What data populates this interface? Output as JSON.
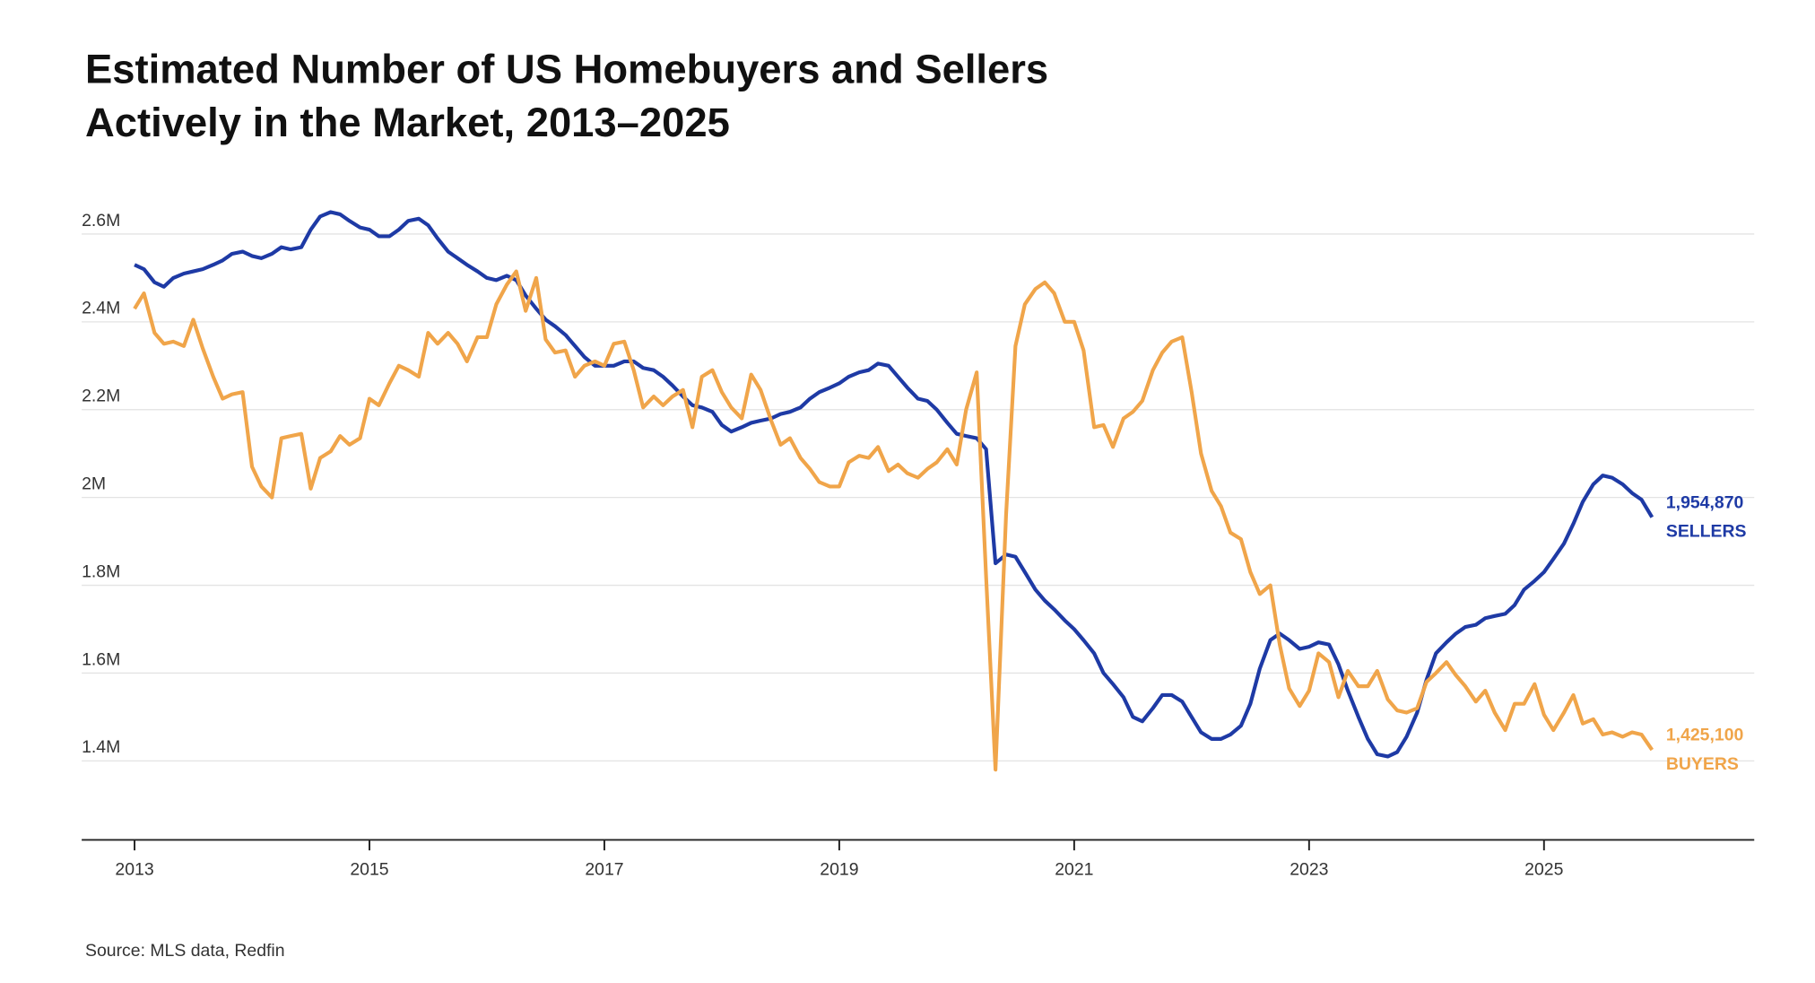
{
  "chart_data": {
    "type": "line",
    "title": [
      "Estimated Number of US Homebuyers and Sellers",
      "Actively in the Market, 2013–2025"
    ],
    "source": "Source: MLS data, Redfin",
    "x": [
      2013,
      2013.08,
      2013.17,
      2013.25,
      2013.33,
      2013.42,
      2013.5,
      2013.58,
      2013.67,
      2013.75,
      2013.83,
      2013.92,
      2014,
      2014.08,
      2014.17,
      2014.25,
      2014.33,
      2014.42,
      2014.5,
      2014.58,
      2014.67,
      2014.75,
      2014.83,
      2014.92,
      2015,
      2015.08,
      2015.17,
      2015.25,
      2015.33,
      2015.42,
      2015.5,
      2015.58,
      2015.67,
      2015.75,
      2015.83,
      2015.92,
      2016,
      2016.08,
      2016.17,
      2016.25,
      2016.33,
      2016.42,
      2016.5,
      2016.58,
      2016.67,
      2016.75,
      2016.83,
      2016.92,
      2017,
      2017.08,
      2017.17,
      2017.25,
      2017.33,
      2017.42,
      2017.5,
      2017.58,
      2017.67,
      2017.75,
      2017.83,
      2017.92,
      2018,
      2018.08,
      2018.17,
      2018.25,
      2018.33,
      2018.42,
      2018.5,
      2018.58,
      2018.67,
      2018.75,
      2018.83,
      2018.92,
      2019,
      2019.08,
      2019.17,
      2019.25,
      2019.33,
      2019.42,
      2019.5,
      2019.58,
      2019.67,
      2019.75,
      2019.83,
      2019.92,
      2020,
      2020.08,
      2020.17,
      2020.25,
      2020.33,
      2020.42,
      2020.5,
      2020.58,
      2020.67,
      2020.75,
      2020.83,
      2020.92,
      2021,
      2021.08,
      2021.17,
      2021.25,
      2021.33,
      2021.42,
      2021.5,
      2021.58,
      2021.67,
      2021.75,
      2021.83,
      2021.92,
      2022,
      2022.08,
      2022.17,
      2022.25,
      2022.33,
      2022.42,
      2022.5,
      2022.58,
      2022.67,
      2022.75,
      2022.83,
      2022.92,
      2023,
      2023.08,
      2023.17,
      2023.25,
      2023.33,
      2023.42,
      2023.5,
      2023.58,
      2023.67,
      2023.75,
      2023.83,
      2023.92,
      2024,
      2024.08,
      2024.17,
      2024.25,
      2024.33,
      2024.42,
      2024.5,
      2024.58,
      2024.67,
      2024.75,
      2024.83,
      2024.92,
      2025,
      2025.08,
      2025.17,
      2025.25,
      2025.33,
      2025.42,
      2025.5,
      2025.58,
      2025.67,
      2025.75,
      2025.83,
      2025.92
    ],
    "series": [
      {
        "name": "SELLERS",
        "color": "#1e3aa5",
        "end_label": "1,954,870",
        "values": [
          2530000,
          2520000,
          2490000,
          2480000,
          2500000,
          2510000,
          2515000,
          2520000,
          2530000,
          2540000,
          2555000,
          2560000,
          2550000,
          2545000,
          2555000,
          2570000,
          2565000,
          2570000,
          2610000,
          2640000,
          2650000,
          2645000,
          2630000,
          2615000,
          2610000,
          2595000,
          2595000,
          2610000,
          2630000,
          2635000,
          2620000,
          2590000,
          2560000,
          2545000,
          2530000,
          2515000,
          2500000,
          2495000,
          2505000,
          2495000,
          2460000,
          2430000,
          2405000,
          2390000,
          2370000,
          2345000,
          2320000,
          2300000,
          2300000,
          2300000,
          2310000,
          2310000,
          2295000,
          2290000,
          2275000,
          2255000,
          2230000,
          2210000,
          2205000,
          2195000,
          2165000,
          2150000,
          2160000,
          2170000,
          2175000,
          2180000,
          2190000,
          2195000,
          2205000,
          2225000,
          2240000,
          2250000,
          2260000,
          2275000,
          2285000,
          2290000,
          2305000,
          2300000,
          2275000,
          2250000,
          2225000,
          2220000,
          2200000,
          2170000,
          2145000,
          2140000,
          2135000,
          2110000,
          1850000,
          1870000,
          1865000,
          1830000,
          1790000,
          1765000,
          1745000,
          1720000,
          1700000,
          1675000,
          1645000,
          1600000,
          1575000,
          1545000,
          1500000,
          1490000,
          1520000,
          1550000,
          1550000,
          1535000,
          1500000,
          1465000,
          1450000,
          1450000,
          1460000,
          1480000,
          1530000,
          1610000,
          1675000,
          1690000,
          1675000,
          1655000,
          1660000,
          1670000,
          1665000,
          1620000,
          1560000,
          1500000,
          1450000,
          1415000,
          1410000,
          1420000,
          1455000,
          1510000,
          1585000,
          1645000,
          1670000,
          1690000,
          1705000,
          1710000,
          1725000,
          1730000,
          1735000,
          1755000,
          1790000,
          1810000,
          1830000,
          1860000,
          1895000,
          1940000,
          1990000,
          2030000,
          2050000,
          2045000,
          2030000,
          2010000,
          1995000,
          1954870
        ]
      },
      {
        "name": "BUYERS",
        "color": "#f0a54a",
        "end_label": "1,425,100",
        "values": [
          2430000,
          2465000,
          2375000,
          2350000,
          2355000,
          2345000,
          2405000,
          2340000,
          2275000,
          2225000,
          2235000,
          2240000,
          2070000,
          2025000,
          2000000,
          2135000,
          2140000,
          2145000,
          2020000,
          2090000,
          2105000,
          2140000,
          2120000,
          2135000,
          2225000,
          2210000,
          2260000,
          2300000,
          2290000,
          2275000,
          2375000,
          2350000,
          2375000,
          2350000,
          2310000,
          2365000,
          2365000,
          2440000,
          2485000,
          2515000,
          2425000,
          2500000,
          2360000,
          2330000,
          2335000,
          2275000,
          2300000,
          2310000,
          2300000,
          2350000,
          2355000,
          2290000,
          2205000,
          2230000,
          2210000,
          2230000,
          2245000,
          2160000,
          2275000,
          2290000,
          2240000,
          2205000,
          2180000,
          2280000,
          2245000,
          2175000,
          2120000,
          2135000,
          2090000,
          2065000,
          2035000,
          2025000,
          2025000,
          2080000,
          2095000,
          2090000,
          2115000,
          2060000,
          2075000,
          2055000,
          2045000,
          2065000,
          2080000,
          2110000,
          2075000,
          2200000,
          2285000,
          1820000,
          1380000,
          1960000,
          2345000,
          2440000,
          2475000,
          2490000,
          2465000,
          2400000,
          2400000,
          2335000,
          2160000,
          2165000,
          2115000,
          2180000,
          2195000,
          2220000,
          2290000,
          2330000,
          2355000,
          2365000,
          2240000,
          2100000,
          2015000,
          1980000,
          1920000,
          1905000,
          1830000,
          1780000,
          1800000,
          1665000,
          1565000,
          1525000,
          1560000,
          1645000,
          1625000,
          1545000,
          1605000,
          1570000,
          1570000,
          1605000,
          1540000,
          1515000,
          1510000,
          1520000,
          1580000,
          1600000,
          1625000,
          1595000,
          1570000,
          1535000,
          1560000,
          1510000,
          1470000,
          1530000,
          1530000,
          1575000,
          1505000,
          1470000,
          1510000,
          1550000,
          1485000,
          1495000,
          1460000,
          1465000,
          1455000,
          1465000,
          1460000,
          1425100
        ]
      }
    ],
    "xlim": [
      2012.55,
      2026.79
    ],
    "xticks": [
      2013,
      2015,
      2017,
      2019,
      2021,
      2023,
      2025
    ],
    "ylim": [
      1220000,
      2680000
    ],
    "yticks": [
      {
        "value": 1400000,
        "label": "1.4M"
      },
      {
        "value": 1600000,
        "label": "1.6M"
      },
      {
        "value": 1800000,
        "label": "1.8M"
      },
      {
        "value": 2000000,
        "label": "2M"
      },
      {
        "value": 2200000,
        "label": "2.2M"
      },
      {
        "value": 2400000,
        "label": "2.4M"
      },
      {
        "value": 2600000,
        "label": "2.6M"
      }
    ],
    "grid": true
  }
}
